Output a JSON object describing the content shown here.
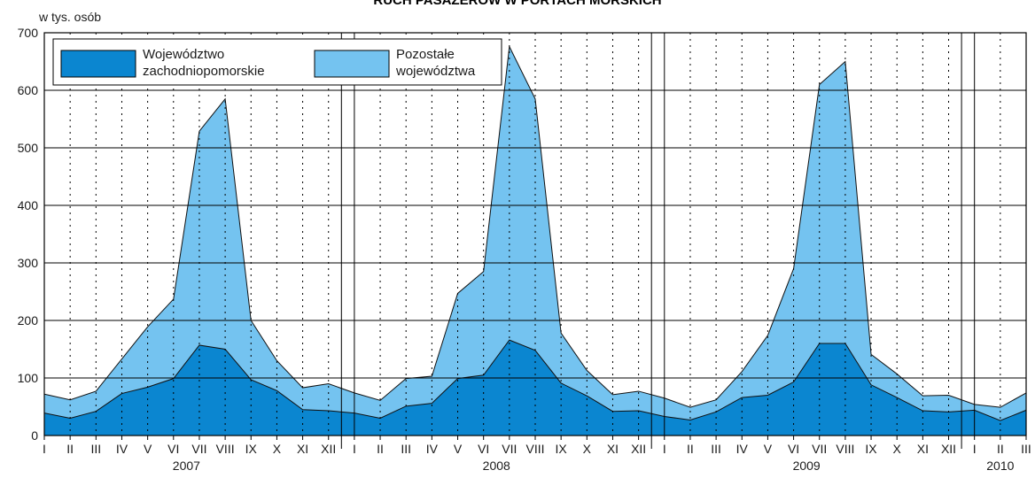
{
  "chart_data": {
    "type": "area",
    "stacked": true,
    "title": "RUCH PASAŻERÓW W PORTACH MORSKICH",
    "ylabel": "w tys. osób",
    "xlabel": "",
    "ylim": [
      0,
      700
    ],
    "yticks": [
      0,
      100,
      200,
      300,
      400,
      500,
      600,
      700
    ],
    "grid": {
      "horizontal": "solid",
      "vertical_months": "dotted",
      "vertical_year_boundaries": "solid"
    },
    "legend_position": "top-left",
    "months": [
      "I",
      "II",
      "III",
      "IV",
      "V",
      "VI",
      "VII",
      "VIII",
      "IX",
      "X",
      "XI",
      "XII",
      "I",
      "II",
      "III",
      "IV",
      "V",
      "VI",
      "VII",
      "VIII",
      "IX",
      "X",
      "XI",
      "XII",
      "I",
      "II",
      "III",
      "IV",
      "V",
      "VI",
      "VII",
      "VIII",
      "IX",
      "X",
      "XI",
      "XII",
      "I",
      "II",
      "III"
    ],
    "years": [
      {
        "label": "2007",
        "start_index": 0,
        "end_index": 11
      },
      {
        "label": "2008",
        "start_index": 12,
        "end_index": 23
      },
      {
        "label": "2009",
        "start_index": 24,
        "end_index": 35
      },
      {
        "label": "2010",
        "start_index": 36,
        "end_index": 38
      }
    ],
    "series": [
      {
        "name": "Województwo zachodniopomorskie",
        "color": "#0b86d0",
        "values": [
          39,
          30,
          42,
          73,
          84,
          99,
          157,
          150,
          97,
          78,
          45,
          43,
          39,
          30,
          51,
          56,
          99,
          105,
          166,
          148,
          91,
          69,
          42,
          43,
          33,
          27,
          41,
          66,
          70,
          93,
          160,
          160,
          88,
          66,
          43,
          41,
          44,
          26,
          44
        ]
      },
      {
        "name": "Pozostałe województwa",
        "color": "#74c3f0",
        "values": [
          33,
          32,
          35,
          60,
          105,
          138,
          372,
          435,
          103,
          52,
          38,
          47,
          35,
          31,
          48,
          47,
          148,
          180,
          510,
          437,
          87,
          44,
          29,
          34,
          32,
          22,
          21,
          45,
          104,
          197,
          450,
          490,
          53,
          41,
          26,
          29,
          10,
          23,
          30
        ]
      }
    ],
    "legend_colors": {
      "stroke": "#000000",
      "background": "#ffffff"
    }
  }
}
